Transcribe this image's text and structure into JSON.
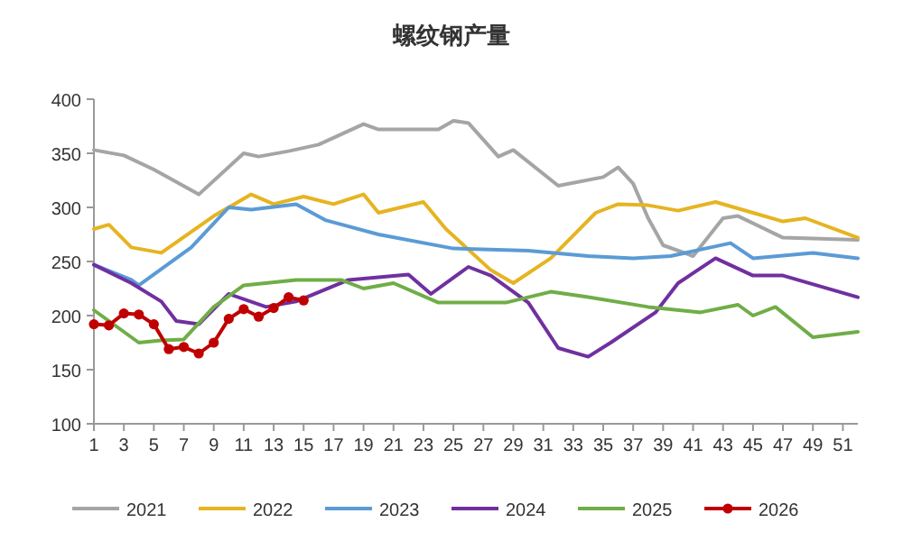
{
  "chart_data": {
    "type": "line",
    "title": "螺纹钢产量",
    "xlim": [
      1,
      52
    ],
    "xticks": [
      1,
      3,
      5,
      7,
      9,
      11,
      13,
      15,
      17,
      19,
      21,
      23,
      25,
      27,
      29,
      31,
      33,
      35,
      37,
      39,
      41,
      43,
      45,
      47,
      49,
      51
    ],
    "ylim": [
      100,
      400
    ],
    "yticks": [
      100,
      150,
      200,
      250,
      300,
      350,
      400
    ],
    "grid": false,
    "legend": "bottom",
    "marker": "none",
    "line_style": "solid",
    "series": [
      {
        "name": "2021",
        "color": "#a5a5a5",
        "x": [
          1,
          3,
          5,
          8,
          11,
          12,
          14,
          16,
          19,
          20,
          24,
          25,
          26,
          28,
          29,
          32,
          35,
          36,
          37,
          38,
          39,
          41,
          43,
          44,
          47,
          52
        ],
        "values": [
          353,
          348,
          335,
          312,
          350,
          347,
          352,
          358,
          377,
          372,
          372,
          380,
          378,
          347,
          353,
          320,
          328,
          337,
          322,
          290,
          265,
          255,
          290,
          292,
          272,
          270
        ]
      },
      {
        "name": "2022",
        "color": "#e6b422",
        "x": [
          1,
          2,
          3.5,
          5.5,
          9,
          11.5,
          13,
          15,
          17,
          19,
          20,
          23,
          24.5,
          27.5,
          29,
          31.5,
          34.5,
          36,
          38,
          40,
          42.5,
          45,
          47,
          48.5,
          52
        ],
        "values": [
          280,
          284,
          263,
          258,
          292,
          312,
          303,
          310,
          303,
          312,
          295,
          305,
          280,
          242,
          230,
          253,
          295,
          303,
          302,
          297,
          305,
          295,
          287,
          290,
          272
        ]
      },
      {
        "name": "2023",
        "color": "#5b9bd5",
        "x": [
          1,
          3.5,
          4,
          7.5,
          10,
          11.5,
          14.5,
          16.5,
          20,
          25,
          30,
          34,
          37,
          39.5,
          43.5,
          45,
          49,
          52
        ],
        "values": [
          247,
          233,
          228,
          263,
          300,
          298,
          303,
          288,
          275,
          262,
          260,
          255,
          253,
          255,
          267,
          253,
          258,
          253
        ]
      },
      {
        "name": "2024",
        "color": "#7030a0",
        "x": [
          1,
          3.5,
          5.5,
          6.5,
          8,
          10,
          12.5,
          14.5,
          18,
          22,
          23.5,
          26,
          27.5,
          30,
          32,
          34,
          35.5,
          38.5,
          40,
          42.5,
          45,
          47,
          52
        ],
        "values": [
          247,
          230,
          213,
          195,
          192,
          220,
          208,
          213,
          233,
          238,
          220,
          245,
          237,
          212,
          170,
          162,
          175,
          203,
          230,
          253,
          237,
          237,
          217
        ]
      },
      {
        "name": "2025",
        "color": "#70ad47",
        "x": [
          1,
          4,
          5.5,
          7,
          9,
          11,
          14.5,
          17.5,
          19,
          21,
          24,
          28.5,
          31.5,
          34,
          38,
          41.5,
          44,
          45,
          46.5,
          49,
          52
        ],
        "values": [
          205,
          175,
          177,
          178,
          208,
          228,
          233,
          233,
          225,
          230,
          212,
          212,
          222,
          217,
          208,
          203,
          210,
          200,
          208,
          180,
          185
        ]
      },
      {
        "name": "2026",
        "color": "#c00000",
        "marker": "circle",
        "x": [
          1,
          2,
          3,
          4,
          5,
          6,
          7,
          8,
          9,
          10,
          11,
          12,
          13,
          14,
          15
        ],
        "values": [
          192,
          191,
          202,
          201,
          192,
          169,
          171,
          165,
          175,
          197,
          206,
          199,
          207,
          217,
          214
        ]
      }
    ]
  }
}
